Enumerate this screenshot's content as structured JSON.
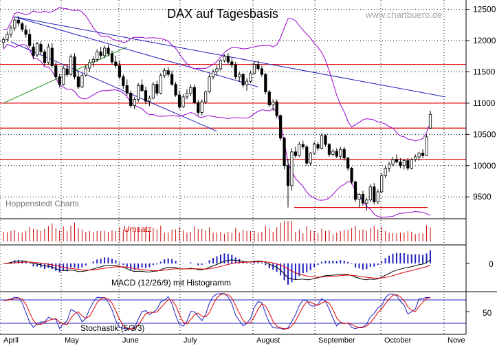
{
  "chart_data": {
    "type": "candlestick",
    "title": "DAX auf Tagesbasis",
    "watermark": "www.chartbuero.de",
    "source": "Hoppenstedt Charts",
    "x_labels": [
      "April",
      "May",
      "June",
      "July",
      "August",
      "September",
      "October",
      "Nove"
    ],
    "price_axis": {
      "ticks": [
        12500,
        12000,
        11500,
        11000,
        10500,
        10000,
        9500
      ],
      "ylim": [
        9150,
        12650
      ]
    },
    "candles": [
      [
        11970,
        12060,
        11880,
        12020
      ],
      [
        12020,
        12150,
        11980,
        12100
      ],
      [
        12100,
        12250,
        12050,
        12200
      ],
      [
        12200,
        12380,
        12150,
        12330
      ],
      [
        12330,
        12390,
        12230,
        12280
      ],
      [
        12270,
        12300,
        12140,
        12180
      ],
      [
        12170,
        12250,
        12050,
        12100
      ],
      [
        12100,
        12190,
        11880,
        11920
      ],
      [
        11900,
        11960,
        11700,
        11760
      ],
      [
        11770,
        11980,
        11740,
        11950
      ],
      [
        11940,
        11990,
        11780,
        11820
      ],
      [
        11820,
        11860,
        11600,
        11650
      ],
      [
        11650,
        11950,
        11620,
        11900
      ],
      [
        11880,
        11960,
        11560,
        11600
      ],
      [
        11600,
        11650,
        11380,
        11420
      ],
      [
        11420,
        11470,
        11250,
        11300
      ],
      [
        11300,
        11600,
        11280,
        11560
      ],
      [
        11550,
        11620,
        11420,
        11460
      ],
      [
        11460,
        11780,
        11440,
        11740
      ],
      [
        11740,
        11800,
        11380,
        11420
      ],
      [
        11420,
        11520,
        11230,
        11260
      ],
      [
        11260,
        11480,
        11240,
        11440
      ],
      [
        11450,
        11600,
        11420,
        11560
      ],
      [
        11560,
        11700,
        11500,
        11650
      ],
      [
        11660,
        11750,
        11580,
        11700
      ],
      [
        11700,
        11860,
        11660,
        11820
      ],
      [
        11820,
        11900,
        11700,
        11760
      ],
      [
        11760,
        11920,
        11720,
        11880
      ],
      [
        11880,
        11930,
        11750,
        11790
      ],
      [
        11790,
        11840,
        11620,
        11660
      ],
      [
        11660,
        11760,
        11560,
        11600
      ],
      [
        11600,
        11680,
        11380,
        11420
      ],
      [
        11420,
        11460,
        11230,
        11280
      ],
      [
        11280,
        11380,
        11120,
        11160
      ],
      [
        11160,
        11200,
        10920,
        10960
      ],
      [
        10960,
        11100,
        10900,
        11060
      ],
      [
        11060,
        11320,
        11020,
        11280
      ],
      [
        11290,
        11380,
        11180,
        11200
      ],
      [
        11200,
        11260,
        10980,
        11030
      ],
      [
        11030,
        11120,
        10950,
        11080
      ],
      [
        11080,
        11340,
        11060,
        11300
      ],
      [
        11300,
        11360,
        11120,
        11160
      ],
      [
        11160,
        11480,
        11140,
        11440
      ],
      [
        11440,
        11560,
        11400,
        11520
      ],
      [
        11520,
        11580,
        11420,
        11460
      ],
      [
        11460,
        11520,
        11280,
        11300
      ],
      [
        11300,
        11340,
        11100,
        11130
      ],
      [
        11130,
        11200,
        10900,
        10940
      ],
      [
        10940,
        11140,
        10920,
        11100
      ],
      [
        11100,
        11220,
        11060,
        11160
      ],
      [
        11160,
        11300,
        11120,
        11250
      ],
      [
        11250,
        11300,
        10980,
        11010
      ],
      [
        11010,
        11050,
        10800,
        10850
      ],
      [
        10850,
        11060,
        10800,
        11020
      ],
      [
        11020,
        11200,
        10990,
        11180
      ],
      [
        11180,
        11460,
        11160,
        11420
      ],
      [
        11420,
        11540,
        11380,
        11500
      ],
      [
        11500,
        11600,
        11440,
        11550
      ],
      [
        11550,
        11700,
        11520,
        11680
      ],
      [
        11680,
        11780,
        11650,
        11750
      ],
      [
        11750,
        11800,
        11620,
        11660
      ],
      [
        11660,
        11720,
        11560,
        11610
      ],
      [
        11610,
        11660,
        11380,
        11420
      ],
      [
        11420,
        11500,
        11340,
        11460
      ],
      [
        11460,
        11480,
        11250,
        11290
      ],
      [
        11290,
        11400,
        11200,
        11350
      ],
      [
        11350,
        11520,
        11320,
        11480
      ],
      [
        11480,
        11660,
        11460,
        11620
      ],
      [
        11620,
        11680,
        11520,
        11550
      ],
      [
        11550,
        11600,
        11420,
        11460
      ],
      [
        11460,
        11480,
        11140,
        11180
      ],
      [
        11180,
        11210,
        10940,
        10970
      ],
      [
        10970,
        11060,
        10880,
        11020
      ],
      [
        11020,
        11060,
        10760,
        10800
      ],
      [
        10800,
        10820,
        10400,
        10440
      ],
      [
        10440,
        10460,
        9940,
        10000
      ],
      [
        10000,
        10100,
        9330,
        9680
      ],
      [
        9680,
        10280,
        9600,
        10220
      ],
      [
        10220,
        10300,
        10120,
        10160
      ],
      [
        10160,
        10380,
        10140,
        10340
      ],
      [
        10340,
        10400,
        10260,
        10300
      ],
      [
        10300,
        10330,
        10000,
        10040
      ],
      [
        10040,
        10220,
        10000,
        10200
      ],
      [
        10200,
        10380,
        10180,
        10340
      ],
      [
        10340,
        10380,
        10240,
        10280
      ],
      [
        10280,
        10520,
        10260,
        10480
      ],
      [
        10480,
        10500,
        10300,
        10340
      ],
      [
        10340,
        10360,
        10140,
        10180
      ],
      [
        10180,
        10260,
        10150,
        10230
      ],
      [
        10230,
        10280,
        10120,
        10150
      ],
      [
        10150,
        10300,
        10100,
        10260
      ],
      [
        10260,
        10300,
        10080,
        10120
      ],
      [
        10120,
        10140,
        9920,
        9960
      ],
      [
        9960,
        9980,
        9700,
        9740
      ],
      [
        9740,
        9760,
        9420,
        9460
      ],
      [
        9460,
        9560,
        9330,
        9540
      ],
      [
        9540,
        9600,
        9360,
        9400
      ],
      [
        9400,
        9480,
        9280,
        9450
      ],
      [
        9450,
        9700,
        9420,
        9660
      ],
      [
        9660,
        9720,
        9380,
        9420
      ],
      [
        9420,
        9620,
        9380,
        9580
      ],
      [
        9580,
        9880,
        9560,
        9840
      ],
      [
        9840,
        10000,
        9800,
        9960
      ],
      [
        9960,
        10060,
        9900,
        10020
      ],
      [
        10020,
        10140,
        9990,
        10100
      ],
      [
        10100,
        10180,
        10040,
        10060
      ],
      [
        10060,
        10120,
        9960,
        10000
      ],
      [
        10000,
        10100,
        9940,
        10080
      ],
      [
        10080,
        10120,
        9920,
        9960
      ],
      [
        9960,
        10120,
        9940,
        10100
      ],
      [
        10100,
        10180,
        10060,
        10140
      ],
      [
        10140,
        10220,
        10080,
        10200
      ],
      [
        10200,
        10260,
        10120,
        10160
      ],
      [
        10160,
        10500,
        10150,
        10460
      ],
      [
        10600,
        10880,
        10580,
        10820
      ]
    ],
    "horizontal_levels": [
      11620,
      11000,
      10600,
      10100,
      9330
    ],
    "volume_label": "Umsatz",
    "macd_label": "MACD (12/26/9) mit Histogramm",
    "macd_axis_ticks": [
      "0"
    ],
    "stoch_label": "Stochastik (5/3/3)",
    "stoch_axis_ticks": [
      "50"
    ],
    "colors": {
      "candle": "#000000",
      "bollinger": "#9900cc",
      "trend_blue": "#1f1fbf",
      "support_red": "#e00000",
      "trend_green": "#1f8f1f",
      "volume": "#cc0000",
      "macd_hist": "#1f1fbf",
      "stoch_fast": "#1f1fbf",
      "stoch_slow": "#e00000",
      "grid": "#000000"
    }
  }
}
